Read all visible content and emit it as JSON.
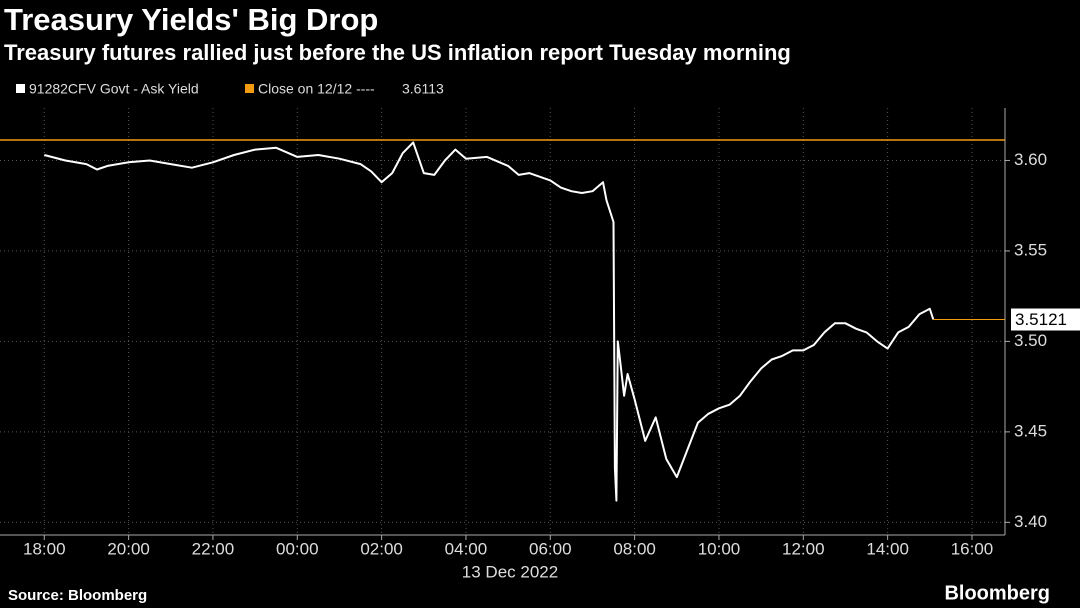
{
  "chart_data": {
    "type": "line",
    "title": "Treasury Yields' Big Drop",
    "subtitle": "Treasury futures rallied just before the US inflation report Tuesday morning",
    "x_label": "13 Dec 2022",
    "source": "Source: Bloomberg",
    "brand": "Bloomberg",
    "close_label": "Close on 12/12 ----",
    "close_value": 3.6113,
    "close_color": "#f39c12",
    "grid": true,
    "ylim": [
      3.393,
      3.629
    ],
    "yticks": [
      {
        "value": 3.4,
        "label": "3.40"
      },
      3.45,
      {
        "value": 3.5,
        "label": "3.50"
      },
      3.55,
      {
        "value": 3.6,
        "label": "3.60"
      }
    ],
    "xlim": [
      "2022-12-12T16:57",
      "2022-12-13T16:47"
    ],
    "xticks": [
      {
        "value": "2022-12-12T18:00",
        "label": "18:00"
      },
      {
        "value": "2022-12-12T20:00",
        "label": "20:00"
      },
      {
        "value": "2022-12-12T22:00",
        "label": "22:00"
      },
      {
        "value": "2022-12-13T00:00",
        "label": "00:00"
      },
      {
        "value": "2022-12-13T02:00",
        "label": "02:00"
      },
      {
        "value": "2022-12-13T04:00",
        "label": "04:00"
      },
      {
        "value": "2022-12-13T06:00",
        "label": "06:00"
      },
      {
        "value": "2022-12-13T08:00",
        "label": "08:00"
      },
      {
        "value": "2022-12-13T10:00",
        "label": "10:00"
      },
      {
        "value": "2022-12-13T12:00",
        "label": "12:00"
      },
      {
        "value": "2022-12-13T14:00",
        "label": "14:00"
      },
      {
        "value": "2022-12-13T16:00",
        "label": "16:00"
      }
    ],
    "x": [
      "2022-12-12T18:00",
      "2022-12-12T18:30",
      "2022-12-12T19:00",
      "2022-12-12T19:15",
      "2022-12-12T19:30",
      "2022-12-12T20:00",
      "2022-12-12T20:30",
      "2022-12-12T21:00",
      "2022-12-12T21:30",
      "2022-12-12T22:00",
      "2022-12-12T22:30",
      "2022-12-12T23:00",
      "2022-12-12T23:30",
      "2022-12-13T00:00",
      "2022-12-13T00:30",
      "2022-12-13T01:00",
      "2022-12-13T01:30",
      "2022-12-13T01:45",
      "2022-12-13T02:00",
      "2022-12-13T02:15",
      "2022-12-13T02:30",
      "2022-12-13T02:45",
      "2022-12-13T03:00",
      "2022-12-13T03:15",
      "2022-12-13T03:30",
      "2022-12-13T03:45",
      "2022-12-13T04:00",
      "2022-12-13T04:30",
      "2022-12-13T05:00",
      "2022-12-13T05:15",
      "2022-12-13T05:30",
      "2022-12-13T06:00",
      "2022-12-13T06:15",
      "2022-12-13T06:30",
      "2022-12-13T06:45",
      "2022-12-13T07:00",
      "2022-12-13T07:15",
      "2022-12-13T07:20",
      "2022-12-13T07:30",
      "2022-12-13T07:32",
      "2022-12-13T07:34",
      "2022-12-13T07:36",
      "2022-12-13T07:40",
      "2022-12-13T07:45",
      "2022-12-13T07:50",
      "2022-12-13T08:00",
      "2022-12-13T08:15",
      "2022-12-13T08:30",
      "2022-12-13T08:45",
      "2022-12-13T09:00",
      "2022-12-13T09:15",
      "2022-12-13T09:30",
      "2022-12-13T09:45",
      "2022-12-13T10:00",
      "2022-12-13T10:15",
      "2022-12-13T10:30",
      "2022-12-13T10:45",
      "2022-12-13T11:00",
      "2022-12-13T11:15",
      "2022-12-13T11:30",
      "2022-12-13T11:45",
      "2022-12-13T12:00",
      "2022-12-13T12:15",
      "2022-12-13T12:30",
      "2022-12-13T12:45",
      "2022-12-13T13:00",
      "2022-12-13T13:15",
      "2022-12-13T13:30",
      "2022-12-13T13:45",
      "2022-12-13T14:00",
      "2022-12-13T14:15",
      "2022-12-13T14:30",
      "2022-12-13T14:45",
      "2022-12-13T15:00",
      "2022-12-13T15:05"
    ],
    "series": [
      {
        "name": "91282CFV Govt - Ask Yield",
        "color": "#ffffff",
        "values": [
          3.603,
          3.6,
          3.598,
          3.595,
          3.597,
          3.599,
          3.6,
          3.598,
          3.596,
          3.599,
          3.603,
          3.606,
          3.607,
          3.602,
          3.603,
          3.601,
          3.598,
          3.594,
          3.588,
          3.593,
          3.604,
          3.61,
          3.593,
          3.592,
          3.6,
          3.606,
          3.601,
          3.602,
          3.597,
          3.592,
          3.593,
          3.589,
          3.585,
          3.583,
          3.582,
          3.583,
          3.588,
          3.578,
          3.566,
          3.43,
          3.412,
          3.5,
          3.487,
          3.47,
          3.482,
          3.468,
          3.445,
          3.458,
          3.435,
          3.425,
          3.44,
          3.455,
          3.46,
          3.463,
          3.465,
          3.47,
          3.478,
          3.485,
          3.49,
          3.492,
          3.495,
          3.495,
          3.498,
          3.505,
          3.51,
          3.51,
          3.507,
          3.505,
          3.5,
          3.496,
          3.505,
          3.508,
          3.515,
          3.518,
          3.5121
        ],
        "last_label": "3.5121"
      }
    ]
  }
}
